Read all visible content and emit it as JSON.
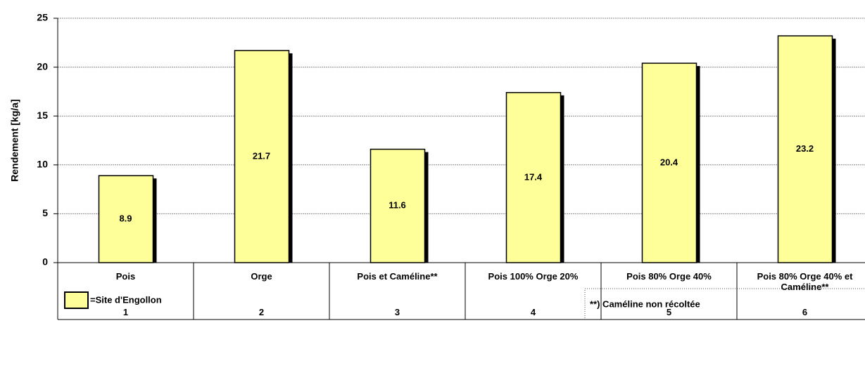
{
  "chart_data": {
    "type": "bar",
    "y_label": "Rendement [kg/a]",
    "categories": [
      "Pois",
      "Orge",
      "Pois  et Caméline**",
      "Pois 100%    Orge 20%",
      "Pois 80%   Orge 40%",
      "Pois 80%   Orge 40%   et Caméline**"
    ],
    "category_numbers": [
      "1",
      "2",
      "3",
      "4",
      "5",
      "6"
    ],
    "values": [
      8.9,
      21.7,
      11.6,
      17.4,
      20.4,
      23.2
    ],
    "color": "#ffff99",
    "ylim": [
      0,
      25
    ],
    "yticks": [
      0,
      5,
      10,
      15,
      20,
      25
    ],
    "grid": true,
    "legend": "=Site d'Engollon",
    "note": "**) Caméline non récoltée"
  }
}
